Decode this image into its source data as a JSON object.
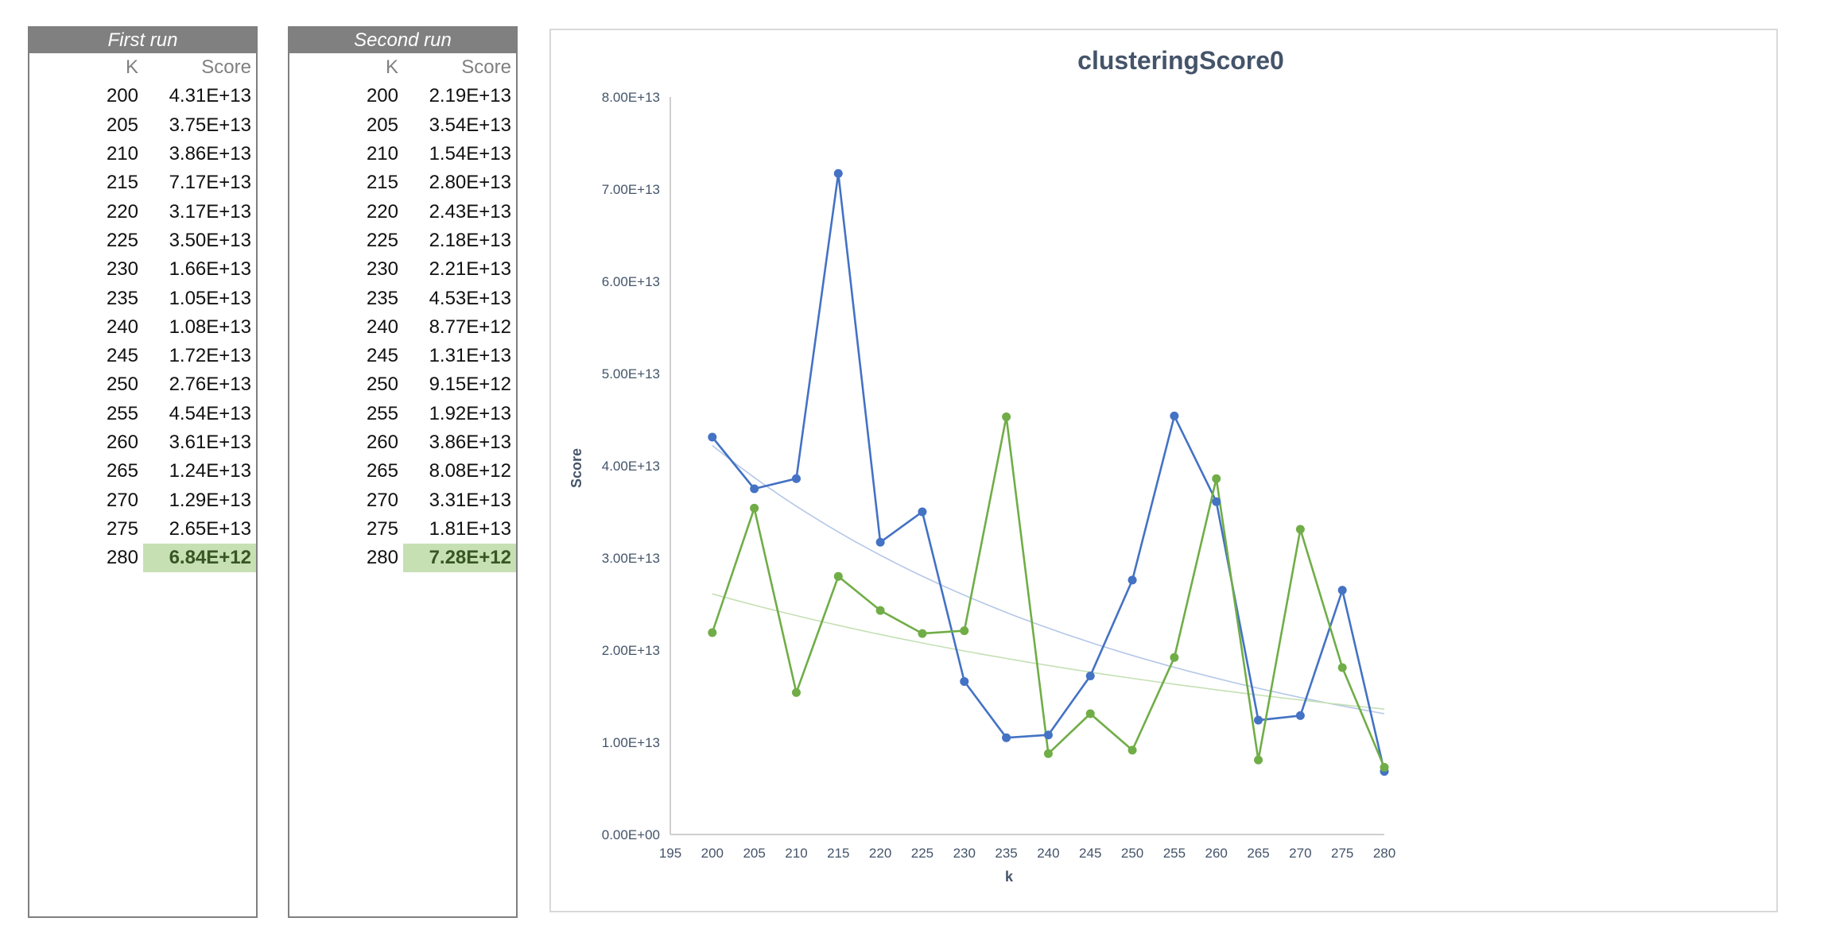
{
  "tables": [
    {
      "title": "First run",
      "header": {
        "k": "K",
        "score": "Score"
      },
      "rows": [
        {
          "k": "200",
          "score": "4.31E+13"
        },
        {
          "k": "205",
          "score": "3.75E+13"
        },
        {
          "k": "210",
          "score": "3.86E+13"
        },
        {
          "k": "215",
          "score": "7.17E+13"
        },
        {
          "k": "220",
          "score": "3.17E+13"
        },
        {
          "k": "225",
          "score": "3.50E+13"
        },
        {
          "k": "230",
          "score": "1.66E+13"
        },
        {
          "k": "235",
          "score": "1.05E+13"
        },
        {
          "k": "240",
          "score": "1.08E+13"
        },
        {
          "k": "245",
          "score": "1.72E+13"
        },
        {
          "k": "250",
          "score": "2.76E+13"
        },
        {
          "k": "255",
          "score": "4.54E+13"
        },
        {
          "k": "260",
          "score": "3.61E+13"
        },
        {
          "k": "265",
          "score": "1.24E+13"
        },
        {
          "k": "270",
          "score": "1.29E+13"
        },
        {
          "k": "275",
          "score": "2.65E+13"
        },
        {
          "k": "280",
          "score": "6.84E+12",
          "highlight": true
        }
      ]
    },
    {
      "title": "Second run",
      "header": {
        "k": "K",
        "score": "Score"
      },
      "rows": [
        {
          "k": "200",
          "score": "2.19E+13"
        },
        {
          "k": "205",
          "score": "3.54E+13"
        },
        {
          "k": "210",
          "score": "1.54E+13"
        },
        {
          "k": "215",
          "score": "2.80E+13"
        },
        {
          "k": "220",
          "score": "2.43E+13"
        },
        {
          "k": "225",
          "score": "2.18E+13"
        },
        {
          "k": "230",
          "score": "2.21E+13"
        },
        {
          "k": "235",
          "score": "4.53E+13"
        },
        {
          "k": "240",
          "score": "8.77E+12"
        },
        {
          "k": "245",
          "score": "1.31E+13"
        },
        {
          "k": "250",
          "score": "9.15E+12"
        },
        {
          "k": "255",
          "score": "1.92E+13"
        },
        {
          "k": "260",
          "score": "3.86E+13"
        },
        {
          "k": "265",
          "score": "8.08E+12"
        },
        {
          "k": "270",
          "score": "3.31E+13"
        },
        {
          "k": "275",
          "score": "1.81E+13"
        },
        {
          "k": "280",
          "score": "7.28E+12",
          "highlight": true
        }
      ]
    }
  ],
  "chart_data": {
    "type": "line",
    "title": "clusteringScore0",
    "xlabel": "k",
    "ylabel": "Score",
    "xlim": [
      195,
      280
    ],
    "ylim": [
      0,
      80000000000000.0
    ],
    "x_ticks": [
      195,
      200,
      205,
      210,
      215,
      220,
      225,
      230,
      235,
      240,
      245,
      250,
      255,
      260,
      265,
      270,
      275,
      280
    ],
    "y_ticks": [
      "0.00E+00",
      "1.00E+13",
      "2.00E+13",
      "3.00E+13",
      "4.00E+13",
      "5.00E+13",
      "6.00E+13",
      "7.00E+13",
      "8.00E+13"
    ],
    "grid": false,
    "x": [
      200,
      205,
      210,
      215,
      220,
      225,
      230,
      235,
      240,
      245,
      250,
      255,
      260,
      265,
      270,
      275,
      280
    ],
    "series": [
      {
        "color": "#4472c4",
        "values": [
          43100000000000.0,
          37500000000000.0,
          38600000000000.0,
          71700000000000.0,
          31700000000000.0,
          35000000000000.0,
          16600000000000.0,
          10500000000000.0,
          10800000000000.0,
          17200000000000.0,
          27600000000000.0,
          45400000000000.0,
          36100000000000.0,
          12400000000000.0,
          12900000000000.0,
          26500000000000.0,
          6840000000000.0
        ],
        "trendline": {
          "color": "#b4c7e7",
          "type": "power",
          "start": [
            200,
            42200000000000.0
          ],
          "end": [
            280,
            13100000000000.0
          ]
        }
      },
      {
        "color": "#70ad47",
        "values": [
          21900000000000.0,
          35400000000000.0,
          15400000000000.0,
          28000000000000.0,
          24300000000000.0,
          21800000000000.0,
          22100000000000.0,
          45300000000000.0,
          8770000000000.0,
          13100000000000.0,
          9150000000000.0,
          19200000000000.0,
          38600000000000.0,
          8080000000000.0,
          33100000000000.0,
          18100000000000.0,
          7280000000000.0
        ],
        "trendline": {
          "color": "#c5e0b4",
          "type": "power",
          "start": [
            200,
            26100000000000.0
          ],
          "end": [
            280,
            13600000000000.0
          ]
        }
      }
    ]
  }
}
